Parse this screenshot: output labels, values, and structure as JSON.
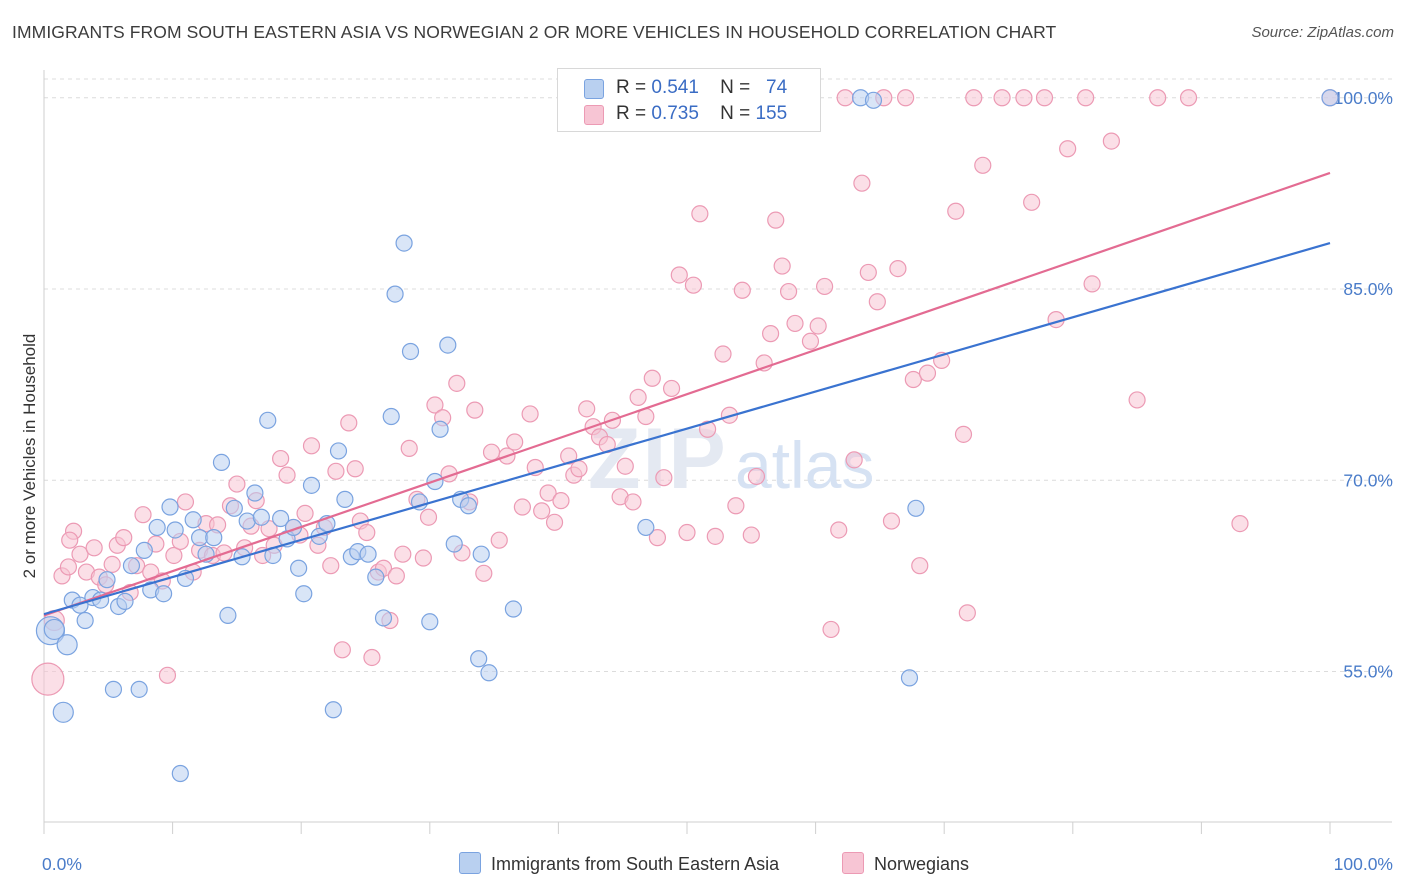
{
  "header": {
    "title": "IMMIGRANTS FROM SOUTH EASTERN ASIA VS NORWEGIAN 2 OR MORE VEHICLES IN HOUSEHOLD CORRELATION CHART",
    "source": "Source: ZipAtlas.com"
  },
  "watermark": "ZIPatlas",
  "colors": {
    "blue_fill": "#b9d0f0",
    "blue_stroke": "#7aa3e0",
    "blue_line": "#3a73d0",
    "pink_fill": "#f7c5d4",
    "pink_stroke": "#ec9ab4",
    "pink_line": "#e36b92",
    "tick_text": "#4a7cc9"
  },
  "legend_top": {
    "rows": [
      {
        "r_label": "R =",
        "r_value": "0.541",
        "n_label": "N =",
        "n_value": "74"
      },
      {
        "r_label": "R =",
        "r_value": "0.735",
        "n_label": "N =",
        "n_value": "155"
      }
    ]
  },
  "legend_bottom": {
    "series1": "Immigrants from South Eastern Asia",
    "series2": "Norwegians"
  },
  "chart_data": {
    "type": "scatter",
    "title": "IMMIGRANTS FROM SOUTH EASTERN ASIA VS NORWEGIAN 2 OR MORE VEHICLES IN HOUSEHOLD CORRELATION CHART",
    "xlabel": "",
    "ylabel": "2 or more Vehicles in Household",
    "xlim": [
      0,
      100
    ],
    "ylim": [
      40,
      101.5
    ],
    "x_tick_labels": [
      "0.0%",
      "100.0%"
    ],
    "y_ticks": [
      55,
      70,
      85,
      100
    ],
    "y_tick_labels": [
      "55.0%",
      "70.0%",
      "85.0%",
      "100.0%"
    ],
    "grid": true,
    "legend_position": "top-center",
    "series": [
      {
        "name": "Immigrants from South Eastern Asia",
        "color": "#7aa3e0",
        "r": 0.541,
        "n": 74,
        "trend": {
          "x": [
            0,
            100
          ],
          "y": [
            59.5,
            88.6
          ]
        },
        "points": [
          [
            0.5,
            58.2,
            14
          ],
          [
            1.5,
            51.8,
            10
          ],
          [
            1.8,
            57.1,
            10
          ],
          [
            2.2,
            60.6,
            8
          ],
          [
            2.8,
            60.2,
            8
          ],
          [
            3.2,
            59.0,
            8
          ],
          [
            3.8,
            60.8,
            8
          ],
          [
            4.4,
            60.6,
            8
          ],
          [
            4.9,
            62.2,
            8
          ],
          [
            5.4,
            53.6,
            8
          ],
          [
            5.8,
            60.1,
            8
          ],
          [
            6.3,
            60.5,
            8
          ],
          [
            6.8,
            63.3,
            8
          ],
          [
            7.4,
            53.6,
            8
          ],
          [
            7.8,
            64.5,
            8
          ],
          [
            8.3,
            61.4,
            8
          ],
          [
            8.8,
            66.3,
            8
          ],
          [
            9.3,
            61.1,
            8
          ],
          [
            9.8,
            67.9,
            8
          ],
          [
            10.2,
            66.1,
            8
          ],
          [
            10.6,
            47.0,
            8
          ],
          [
            11.0,
            62.3,
            8
          ],
          [
            11.6,
            66.9,
            8
          ],
          [
            12.1,
            65.5,
            8
          ],
          [
            12.6,
            64.2,
            8
          ],
          [
            13.2,
            65.5,
            8
          ],
          [
            13.8,
            71.4,
            8
          ],
          [
            14.3,
            59.4,
            8
          ],
          [
            14.8,
            67.8,
            8
          ],
          [
            15.4,
            64.0,
            8
          ],
          [
            15.8,
            66.8,
            8
          ],
          [
            16.4,
            69.0,
            8
          ],
          [
            16.9,
            67.1,
            8
          ],
          [
            17.4,
            74.7,
            8
          ],
          [
            17.8,
            64.1,
            8
          ],
          [
            18.4,
            67.0,
            8
          ],
          [
            18.9,
            65.4,
            8
          ],
          [
            19.4,
            66.3,
            8
          ],
          [
            19.8,
            63.1,
            8
          ],
          [
            20.2,
            61.1,
            8
          ],
          [
            20.8,
            69.6,
            8
          ],
          [
            21.4,
            65.6,
            8
          ],
          [
            22.0,
            66.6,
            8
          ],
          [
            22.5,
            52.0,
            8
          ],
          [
            22.9,
            72.3,
            8
          ],
          [
            23.4,
            68.5,
            8
          ],
          [
            23.9,
            64.0,
            8
          ],
          [
            24.4,
            64.4,
            8
          ],
          [
            25.2,
            64.2,
            8
          ],
          [
            25.8,
            62.4,
            8
          ],
          [
            26.4,
            59.2,
            8
          ],
          [
            27.0,
            75.0,
            8
          ],
          [
            27.3,
            84.6,
            8
          ],
          [
            28.0,
            88.6,
            8
          ],
          [
            28.5,
            80.1,
            8
          ],
          [
            29.2,
            68.3,
            8
          ],
          [
            30.0,
            58.9,
            8
          ],
          [
            30.4,
            69.9,
            8
          ],
          [
            30.8,
            74.0,
            8
          ],
          [
            31.4,
            80.6,
            8
          ],
          [
            31.9,
            65.0,
            8
          ],
          [
            32.4,
            68.5,
            8
          ],
          [
            33.0,
            68.0,
            8
          ],
          [
            34.0,
            64.2,
            8
          ],
          [
            33.8,
            56.0,
            8
          ],
          [
            34.6,
            54.9,
            8
          ],
          [
            36.5,
            59.9,
            8
          ],
          [
            46.8,
            66.3,
            8
          ],
          [
            63.5,
            100.0,
            8
          ],
          [
            64.5,
            99.8,
            8
          ],
          [
            67.3,
            54.5,
            8
          ],
          [
            67.8,
            67.8,
            8
          ],
          [
            100.0,
            100.0,
            8
          ],
          [
            0.8,
            58.3,
            10
          ]
        ]
      },
      {
        "name": "Norwegians",
        "color": "#ec9ab4",
        "r": 0.735,
        "n": 155,
        "trend": {
          "x": [
            0,
            100
          ],
          "y": [
            59.4,
            94.1
          ]
        },
        "points": [
          [
            0.3,
            54.4,
            16
          ],
          [
            0.8,
            59.0,
            10
          ],
          [
            1.4,
            62.5,
            8
          ],
          [
            1.9,
            63.2,
            8
          ],
          [
            2.3,
            66.0,
            8
          ],
          [
            2.8,
            64.2,
            8
          ],
          [
            3.3,
            62.8,
            8
          ],
          [
            3.9,
            64.7,
            8
          ],
          [
            4.3,
            62.4,
            8
          ],
          [
            4.8,
            61.8,
            8
          ],
          [
            5.3,
            63.4,
            8
          ],
          [
            5.7,
            64.9,
            8
          ],
          [
            6.2,
            65.5,
            8
          ],
          [
            6.7,
            61.2,
            8
          ],
          [
            7.2,
            63.3,
            8
          ],
          [
            7.7,
            67.3,
            8
          ],
          [
            8.3,
            62.8,
            8
          ],
          [
            8.7,
            65.0,
            8
          ],
          [
            9.2,
            62.1,
            8
          ],
          [
            9.6,
            54.7,
            8
          ],
          [
            10.1,
            64.1,
            8
          ],
          [
            10.6,
            65.2,
            8
          ],
          [
            11.0,
            68.3,
            8
          ],
          [
            11.6,
            62.8,
            8
          ],
          [
            12.1,
            64.5,
            8
          ],
          [
            12.6,
            66.6,
            8
          ],
          [
            13.1,
            64.1,
            8
          ],
          [
            13.5,
            66.5,
            8
          ],
          [
            14.0,
            64.3,
            8
          ],
          [
            14.5,
            68.0,
            8
          ],
          [
            15.0,
            69.7,
            8
          ],
          [
            15.6,
            64.7,
            8
          ],
          [
            16.1,
            66.4,
            8
          ],
          [
            16.5,
            68.4,
            8
          ],
          [
            17.0,
            64.1,
            8
          ],
          [
            17.5,
            66.2,
            8
          ],
          [
            17.9,
            64.9,
            8
          ],
          [
            18.4,
            71.7,
            8
          ],
          [
            18.9,
            70.4,
            8
          ],
          [
            19.4,
            66.3,
            8
          ],
          [
            19.9,
            65.7,
            8
          ],
          [
            20.3,
            67.4,
            8
          ],
          [
            20.8,
            72.7,
            8
          ],
          [
            21.3,
            64.9,
            8
          ],
          [
            21.8,
            66.3,
            8
          ],
          [
            22.3,
            63.3,
            8
          ],
          [
            22.7,
            70.7,
            8
          ],
          [
            23.2,
            56.7,
            8
          ],
          [
            23.7,
            74.5,
            8
          ],
          [
            24.2,
            70.9,
            8
          ],
          [
            24.6,
            66.8,
            8
          ],
          [
            25.1,
            65.9,
            8
          ],
          [
            25.5,
            56.1,
            8
          ],
          [
            26.0,
            62.8,
            8
          ],
          [
            26.4,
            63.1,
            8
          ],
          [
            26.9,
            59.0,
            8
          ],
          [
            27.4,
            62.5,
            8
          ],
          [
            27.9,
            64.2,
            8
          ],
          [
            28.4,
            72.5,
            8
          ],
          [
            29.0,
            68.5,
            8
          ],
          [
            29.5,
            63.9,
            8
          ],
          [
            29.9,
            67.1,
            8
          ],
          [
            30.4,
            75.9,
            8
          ],
          [
            31.0,
            74.9,
            8
          ],
          [
            31.5,
            70.5,
            8
          ],
          [
            32.1,
            77.6,
            8
          ],
          [
            32.5,
            64.3,
            8
          ],
          [
            33.1,
            68.3,
            8
          ],
          [
            33.5,
            75.5,
            8
          ],
          [
            34.2,
            62.7,
            8
          ],
          [
            34.8,
            72.2,
            8
          ],
          [
            35.4,
            65.3,
            8
          ],
          [
            36.0,
            71.9,
            8
          ],
          [
            36.6,
            73.0,
            8
          ],
          [
            37.2,
            67.9,
            8
          ],
          [
            37.8,
            75.2,
            8
          ],
          [
            38.2,
            71.0,
            8
          ],
          [
            38.7,
            67.6,
            8
          ],
          [
            39.2,
            69.0,
            8
          ],
          [
            39.7,
            66.7,
            8
          ],
          [
            40.2,
            68.4,
            8
          ],
          [
            40.8,
            71.9,
            8
          ],
          [
            41.2,
            70.4,
            8
          ],
          [
            41.6,
            70.9,
            8
          ],
          [
            42.2,
            75.6,
            8
          ],
          [
            42.7,
            74.2,
            8
          ],
          [
            43.2,
            73.4,
            8
          ],
          [
            43.8,
            72.8,
            8
          ],
          [
            44.2,
            74.7,
            8
          ],
          [
            44.8,
            68.7,
            8
          ],
          [
            45.2,
            71.1,
            8
          ],
          [
            45.8,
            68.3,
            8
          ],
          [
            46.2,
            76.5,
            8
          ],
          [
            46.8,
            75.0,
            8
          ],
          [
            47.3,
            78.0,
            8
          ],
          [
            47.7,
            65.5,
            8
          ],
          [
            48.2,
            70.2,
            8
          ],
          [
            48.8,
            77.2,
            8
          ],
          [
            49.4,
            86.1,
            8
          ],
          [
            50.0,
            65.9,
            8
          ],
          [
            50.5,
            85.3,
            8
          ],
          [
            51.0,
            90.9,
            8
          ],
          [
            51.6,
            74.0,
            8
          ],
          [
            52.2,
            65.6,
            8
          ],
          [
            52.8,
            79.9,
            8
          ],
          [
            53.3,
            75.1,
            8
          ],
          [
            53.8,
            68.0,
            8
          ],
          [
            54.3,
            84.9,
            8
          ],
          [
            55.0,
            65.7,
            8
          ],
          [
            55.4,
            70.3,
            8
          ],
          [
            56.0,
            79.2,
            8
          ],
          [
            56.5,
            81.5,
            8
          ],
          [
            56.9,
            90.4,
            8
          ],
          [
            57.4,
            86.8,
            8
          ],
          [
            57.9,
            84.8,
            8
          ],
          [
            58.4,
            82.3,
            8
          ],
          [
            59.0,
            100.0,
            8
          ],
          [
            59.6,
            80.9,
            8
          ],
          [
            60.2,
            82.1,
            8
          ],
          [
            60.7,
            85.2,
            8
          ],
          [
            61.2,
            58.3,
            8
          ],
          [
            61.8,
            66.1,
            8
          ],
          [
            62.3,
            100.0,
            8
          ],
          [
            63.0,
            71.6,
            8
          ],
          [
            63.6,
            93.3,
            8
          ],
          [
            64.1,
            86.3,
            8
          ],
          [
            64.8,
            84.0,
            8
          ],
          [
            65.3,
            100.0,
            8
          ],
          [
            65.9,
            66.8,
            8
          ],
          [
            66.4,
            86.6,
            8
          ],
          [
            67.0,
            100.0,
            8
          ],
          [
            67.6,
            77.9,
            8
          ],
          [
            68.1,
            63.3,
            8
          ],
          [
            68.7,
            78.4,
            8
          ],
          [
            69.8,
            79.4,
            8
          ],
          [
            70.9,
            91.1,
            8
          ],
          [
            71.5,
            73.6,
            8
          ],
          [
            71.8,
            59.6,
            8
          ],
          [
            72.3,
            100.0,
            8
          ],
          [
            73.0,
            94.7,
            8
          ],
          [
            74.5,
            100.0,
            8
          ],
          [
            76.2,
            100.0,
            8
          ],
          [
            76.8,
            91.8,
            8
          ],
          [
            77.8,
            100.0,
            8
          ],
          [
            78.7,
            82.6,
            8
          ],
          [
            79.6,
            96.0,
            8
          ],
          [
            81.0,
            100.0,
            8
          ],
          [
            81.5,
            85.4,
            8
          ],
          [
            83.0,
            96.6,
            8
          ],
          [
            85.0,
            76.3,
            8
          ],
          [
            86.6,
            100.0,
            8
          ],
          [
            89.0,
            100.0,
            8
          ],
          [
            93.0,
            66.6,
            8
          ],
          [
            100.0,
            100.0,
            8
          ],
          [
            2.0,
            65.3,
            8
          ]
        ]
      }
    ]
  }
}
